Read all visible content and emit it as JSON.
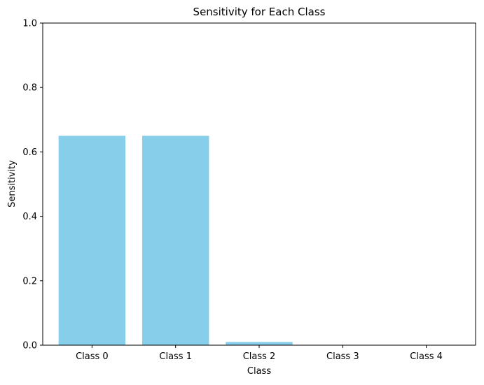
{
  "chart_data": {
    "type": "bar",
    "title": "Sensitivity for Each Class",
    "xlabel": "Class",
    "ylabel": "Sensitivity",
    "categories": [
      "Class 0",
      "Class 1",
      "Class 2",
      "Class 3",
      "Class 4"
    ],
    "values": [
      0.65,
      0.65,
      0.01,
      0.0,
      0.0
    ],
    "ylim": [
      0,
      1
    ],
    "yticks": [
      "0.0",
      "0.2",
      "0.4",
      "0.6",
      "0.8",
      "1.0"
    ],
    "bar_color": "#87CEEB",
    "grid": false
  }
}
